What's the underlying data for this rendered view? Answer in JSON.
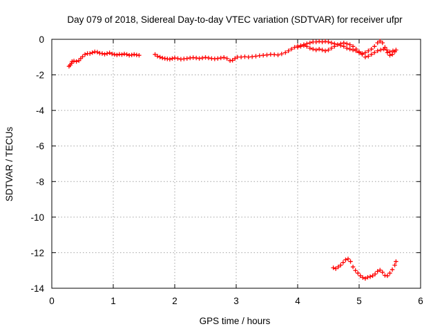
{
  "chart_data": {
    "type": "scatter",
    "title": "Day 079 of 2018, Sidereal Day-to-day VTEC variation (SDTVAR) for receiver ufpr",
    "xlabel": "GPS time / hours",
    "ylabel": "SDTVAR / TECUs",
    "xlim": [
      0,
      6
    ],
    "ylim": [
      -14,
      0
    ],
    "x_ticks": [
      0,
      1,
      2,
      3,
      4,
      5,
      6
    ],
    "y_ticks": [
      0,
      -2,
      -4,
      -6,
      -8,
      -10,
      -12,
      -14
    ],
    "grid": true,
    "marker": "plus",
    "color": "#ff0000",
    "series": [
      {
        "values": [
          [
            0.28,
            -1.52
          ],
          [
            0.3,
            -1.45
          ],
          [
            0.32,
            -1.35
          ],
          [
            0.33,
            -1.25
          ],
          [
            0.36,
            -1.22
          ],
          [
            0.4,
            -1.25
          ],
          [
            0.44,
            -1.2
          ],
          [
            0.47,
            -1.08
          ],
          [
            0.5,
            -0.98
          ],
          [
            0.54,
            -0.85
          ],
          [
            0.58,
            -0.8
          ],
          [
            0.62,
            -0.8
          ],
          [
            0.66,
            -0.75
          ],
          [
            0.7,
            -0.7
          ],
          [
            0.74,
            -0.72
          ],
          [
            0.78,
            -0.78
          ],
          [
            0.82,
            -0.8
          ],
          [
            0.86,
            -0.84
          ],
          [
            0.9,
            -0.8
          ],
          [
            0.94,
            -0.76
          ],
          [
            0.98,
            -0.82
          ],
          [
            1.02,
            -0.85
          ],
          [
            1.06,
            -0.88
          ],
          [
            1.1,
            -0.84
          ],
          [
            1.14,
            -0.86
          ],
          [
            1.18,
            -0.82
          ],
          [
            1.22,
            -0.85
          ],
          [
            1.26,
            -0.9
          ],
          [
            1.3,
            -0.88
          ],
          [
            1.34,
            -0.85
          ],
          [
            1.38,
            -0.88
          ],
          [
            1.42,
            -0.9
          ]
        ]
      },
      {
        "values": [
          [
            1.68,
            -0.85
          ],
          [
            1.72,
            -0.95
          ],
          [
            1.76,
            -1.0
          ],
          [
            1.8,
            -1.05
          ],
          [
            1.84,
            -1.08
          ],
          [
            1.88,
            -1.1
          ],
          [
            1.92,
            -1.12
          ],
          [
            1.96,
            -1.08
          ],
          [
            2.0,
            -1.05
          ],
          [
            2.05,
            -1.08
          ],
          [
            2.1,
            -1.12
          ],
          [
            2.15,
            -1.1
          ],
          [
            2.2,
            -1.08
          ],
          [
            2.25,
            -1.05
          ],
          [
            2.3,
            -1.03
          ],
          [
            2.35,
            -1.05
          ],
          [
            2.4,
            -1.08
          ],
          [
            2.45,
            -1.05
          ],
          [
            2.5,
            -1.02
          ],
          [
            2.55,
            -1.05
          ],
          [
            2.6,
            -1.08
          ],
          [
            2.65,
            -1.1
          ],
          [
            2.7,
            -1.08
          ],
          [
            2.75,
            -1.05
          ],
          [
            2.8,
            -1.02
          ],
          [
            2.85,
            -1.08
          ],
          [
            2.9,
            -1.2
          ],
          [
            2.94,
            -1.18
          ],
          [
            2.98,
            -1.08
          ],
          [
            3.02,
            -1.0
          ],
          [
            3.08,
            -1.0
          ],
          [
            3.14,
            -0.98
          ],
          [
            3.2,
            -1.0
          ],
          [
            3.26,
            -0.98
          ],
          [
            3.32,
            -0.95
          ],
          [
            3.38,
            -0.92
          ],
          [
            3.44,
            -0.9
          ],
          [
            3.5,
            -0.88
          ],
          [
            3.56,
            -0.85
          ],
          [
            3.62,
            -0.86
          ],
          [
            3.68,
            -0.88
          ],
          [
            3.74,
            -0.82
          ],
          [
            3.8,
            -0.75
          ],
          [
            3.85,
            -0.65
          ],
          [
            3.9,
            -0.55
          ],
          [
            3.95,
            -0.45
          ],
          [
            4.0,
            -0.38
          ],
          [
            4.05,
            -0.35
          ],
          [
            4.1,
            -0.3
          ],
          [
            4.15,
            -0.25
          ],
          [
            4.2,
            -0.2
          ],
          [
            4.25,
            -0.15
          ],
          [
            4.3,
            -0.15
          ],
          [
            4.35,
            -0.12
          ],
          [
            4.4,
            -0.15
          ],
          [
            4.45,
            -0.12
          ],
          [
            4.5,
            -0.15
          ],
          [
            4.55,
            -0.2
          ],
          [
            4.6,
            -0.25
          ],
          [
            4.65,
            -0.3
          ],
          [
            4.7,
            -0.35
          ],
          [
            4.75,
            -0.4
          ],
          [
            4.8,
            -0.5
          ],
          [
            4.85,
            -0.55
          ],
          [
            4.9,
            -0.6
          ],
          [
            4.95,
            -0.65
          ],
          [
            5.0,
            -0.75
          ],
          [
            5.05,
            -0.8
          ],
          [
            5.1,
            -0.75
          ],
          [
            5.15,
            -0.65
          ],
          [
            5.2,
            -0.55
          ],
          [
            5.25,
            -0.4
          ],
          [
            5.3,
            -0.2
          ],
          [
            5.34,
            -0.1
          ],
          [
            5.38,
            -0.2
          ],
          [
            5.42,
            -0.45
          ],
          [
            5.46,
            -0.75
          ],
          [
            5.5,
            -0.9
          ],
          [
            5.54,
            -0.85
          ],
          [
            5.58,
            -0.7
          ],
          [
            5.6,
            -0.6
          ]
        ]
      },
      {
        "values": [
          [
            4.0,
            -0.45
          ],
          [
            4.05,
            -0.4
          ],
          [
            4.1,
            -0.35
          ],
          [
            4.15,
            -0.4
          ],
          [
            4.2,
            -0.5
          ],
          [
            4.25,
            -0.55
          ],
          [
            4.3,
            -0.6
          ],
          [
            4.35,
            -0.55
          ],
          [
            4.4,
            -0.6
          ],
          [
            4.45,
            -0.65
          ],
          [
            4.5,
            -0.6
          ],
          [
            4.55,
            -0.5
          ],
          [
            4.6,
            -0.4
          ],
          [
            4.65,
            -0.3
          ],
          [
            4.7,
            -0.25
          ],
          [
            4.75,
            -0.2
          ],
          [
            4.8,
            -0.25
          ],
          [
            4.85,
            -0.3
          ],
          [
            4.9,
            -0.4
          ],
          [
            4.95,
            -0.55
          ],
          [
            5.0,
            -0.7
          ],
          [
            5.05,
            -0.85
          ],
          [
            5.1,
            -1.0
          ],
          [
            5.15,
            -0.95
          ],
          [
            5.2,
            -0.85
          ],
          [
            5.25,
            -0.75
          ],
          [
            5.3,
            -0.65
          ],
          [
            5.35,
            -0.6
          ],
          [
            5.4,
            -0.55
          ],
          [
            5.45,
            -0.6
          ],
          [
            5.5,
            -0.7
          ],
          [
            5.55,
            -0.65
          ]
        ]
      },
      {
        "values": [
          [
            4.58,
            -12.85
          ],
          [
            4.62,
            -12.9
          ],
          [
            4.66,
            -12.8
          ],
          [
            4.7,
            -12.7
          ],
          [
            4.74,
            -12.55
          ],
          [
            4.78,
            -12.4
          ],
          [
            4.82,
            -12.35
          ],
          [
            4.86,
            -12.5
          ],
          [
            4.9,
            -12.8
          ],
          [
            4.94,
            -13.0
          ],
          [
            4.98,
            -13.15
          ],
          [
            5.02,
            -13.3
          ],
          [
            5.06,
            -13.4
          ],
          [
            5.1,
            -13.45
          ],
          [
            5.14,
            -13.38
          ],
          [
            5.18,
            -13.35
          ],
          [
            5.22,
            -13.3
          ],
          [
            5.26,
            -13.2
          ],
          [
            5.3,
            -13.05
          ],
          [
            5.34,
            -12.98
          ],
          [
            5.38,
            -13.1
          ],
          [
            5.42,
            -13.28
          ],
          [
            5.46,
            -13.3
          ],
          [
            5.5,
            -13.15
          ],
          [
            5.54,
            -12.95
          ],
          [
            5.58,
            -12.7
          ],
          [
            5.6,
            -12.5
          ]
        ]
      }
    ]
  }
}
